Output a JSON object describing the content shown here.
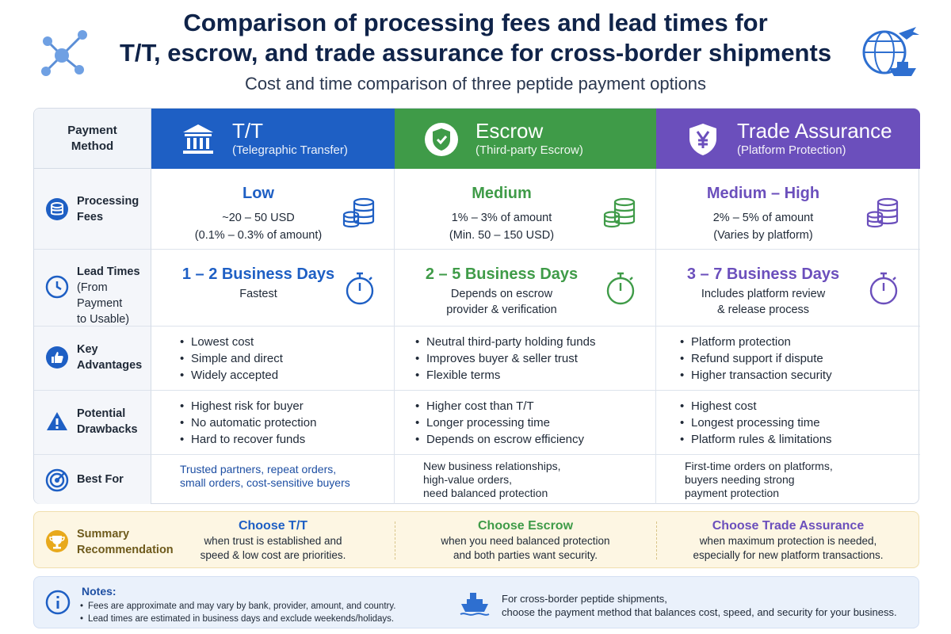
{
  "header": {
    "title_line1": "Comparison of processing fees and lead times for",
    "title_line2": "T/T, escrow, and trade assurance for cross-border shipments",
    "subtitle": "Cost and time comparison of three peptide payment options",
    "left_icon": "network-nodes-icon",
    "right_icon": "globe-plane-ship-icon"
  },
  "colors": {
    "tt": "#1e5fc4",
    "escrow": "#3f9b48",
    "trade_assurance": "#6b4fbc",
    "summary_bg": "#fdf6e3",
    "notes_bg": "#eaf1fb"
  },
  "table": {
    "header_label": "Payment Method",
    "columns": [
      {
        "key": "tt",
        "title": "T/T",
        "subtitle": "(Telegraphic Transfer)",
        "icon": "bank-icon"
      },
      {
        "key": "escrow",
        "title": "Escrow",
        "subtitle": "(Third-party Escrow)",
        "icon": "shield-check-icon"
      },
      {
        "key": "trade_assurance",
        "title": "Trade Assurance",
        "subtitle": "(Platform Protection)",
        "icon": "yen-shield-icon"
      }
    ],
    "rows": {
      "fees": {
        "label_1": "Processing",
        "label_2": "Fees",
        "icon": "coins-icon",
        "tt": {
          "level": "Low",
          "line1": "~20 – 50 USD",
          "line2": "(0.1% – 0.3% of amount)"
        },
        "escrow": {
          "level": "Medium",
          "line1": "1% – 3% of amount",
          "line2": "(Min. 50 – 150 USD)"
        },
        "trade_assurance": {
          "level": "Medium – High",
          "line1": "2% – 5% of amount",
          "line2": "(Varies by platform)"
        }
      },
      "lead": {
        "label_1": "Lead Times",
        "label_2": "(From Payment",
        "label_3": "to Usable)",
        "icon": "clock-icon",
        "tt": {
          "days": "1 – 2 Business Days",
          "line1": "Fastest",
          "line2": ""
        },
        "escrow": {
          "days": "2 – 5 Business Days",
          "line1": "Depends on escrow",
          "line2": "provider & verification"
        },
        "trade_assurance": {
          "days": "3 – 7 Business Days",
          "line1": "Includes platform review",
          "line2": "& release process"
        }
      },
      "advantages": {
        "label_1": "Key",
        "label_2": "Advantages",
        "icon": "thumbs-up-icon",
        "tt": [
          "Lowest cost",
          "Simple and direct",
          "Widely accepted"
        ],
        "escrow": [
          "Neutral third-party holding funds",
          "Improves buyer & seller trust",
          "Flexible terms"
        ],
        "trade_assurance": [
          "Platform protection",
          "Refund support if dispute",
          "Higher transaction security"
        ]
      },
      "drawbacks": {
        "label_1": "Potential",
        "label_2": "Drawbacks",
        "icon": "warning-icon",
        "tt": [
          "Highest risk for buyer",
          "No automatic protection",
          "Hard to recover funds"
        ],
        "escrow": [
          "Higher cost than T/T",
          "Longer processing time",
          "Depends on escrow efficiency"
        ],
        "trade_assurance": [
          "Highest cost",
          "Longest processing time",
          "Platform rules & limitations"
        ]
      },
      "best": {
        "label_1": "Best For",
        "icon": "target-icon",
        "tt": [
          "Trusted partners, repeat orders,",
          "small orders, cost-sensitive buyers"
        ],
        "escrow": [
          "New business relationships,",
          "high-value orders,",
          "need balanced protection"
        ],
        "trade_assurance": [
          "First-time orders on platforms,",
          "buyers needing strong",
          "payment protection"
        ]
      }
    }
  },
  "summary": {
    "label_1": "Summary",
    "label_2": "Recommendation",
    "icon": "trophy-icon",
    "tt": {
      "title": "Choose T/T",
      "line1": "when trust is established and",
      "line2": "speed & low cost are priorities."
    },
    "escrow": {
      "title": "Choose Escrow",
      "line1": "when you need balanced protection",
      "line2": "and both parties want security."
    },
    "trade_assurance": {
      "title": "Choose Trade Assurance",
      "line1": "when maximum protection is needed,",
      "line2": "especially for new platform transactions."
    }
  },
  "notes": {
    "title": "Notes:",
    "icon": "info-icon",
    "items": [
      "Fees are approximate and may vary by bank, provider, amount, and country.",
      "Lead times are estimated in business days and exclude weekends/holidays."
    ],
    "ship_icon": "cargo-ship-icon",
    "tip_line1": "For cross-border peptide shipments,",
    "tip_line2": "choose the payment method that balances cost, speed, and security for your business."
  }
}
